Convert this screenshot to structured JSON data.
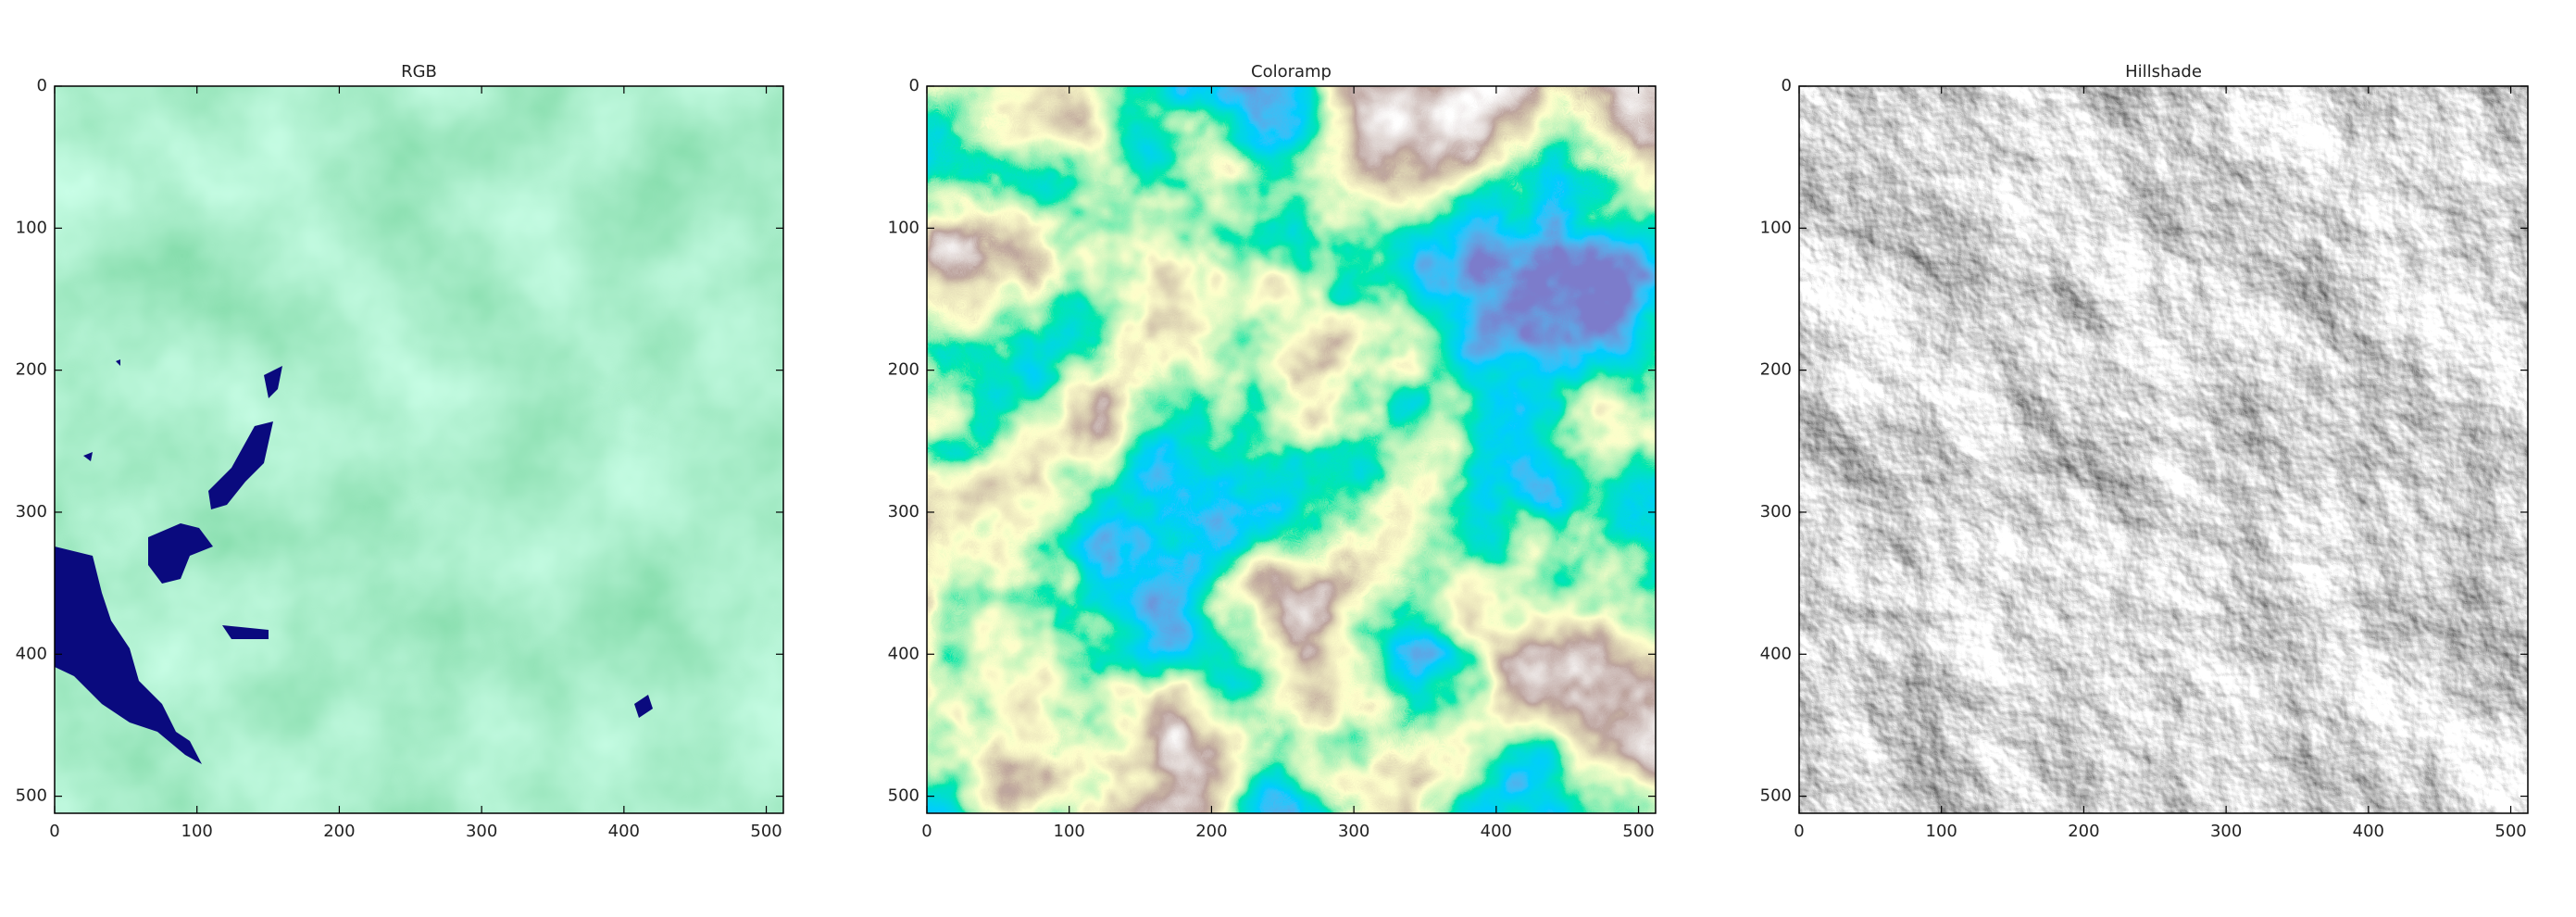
{
  "chart_data": [
    {
      "type": "image",
      "title": "RGB",
      "xlim": [
        0,
        512
      ],
      "ylim": [
        512,
        0
      ],
      "xticks": [
        0,
        100,
        200,
        300,
        400,
        500
      ],
      "yticks": [
        0,
        100,
        200,
        300,
        400,
        500
      ]
    },
    {
      "type": "image",
      "title": "Coloramp",
      "xlim": [
        0,
        512
      ],
      "ylim": [
        512,
        0
      ],
      "xticks": [
        0,
        100,
        200,
        300,
        400,
        500
      ],
      "yticks": [
        0,
        100,
        200,
        300,
        400,
        500
      ]
    },
    {
      "type": "image",
      "title": "Hillshade",
      "xlim": [
        0,
        512
      ],
      "ylim": [
        512,
        0
      ],
      "xticks": [
        0,
        100,
        200,
        300,
        400,
        500
      ],
      "yticks": [
        0,
        100,
        200,
        300,
        400,
        500
      ]
    }
  ]
}
